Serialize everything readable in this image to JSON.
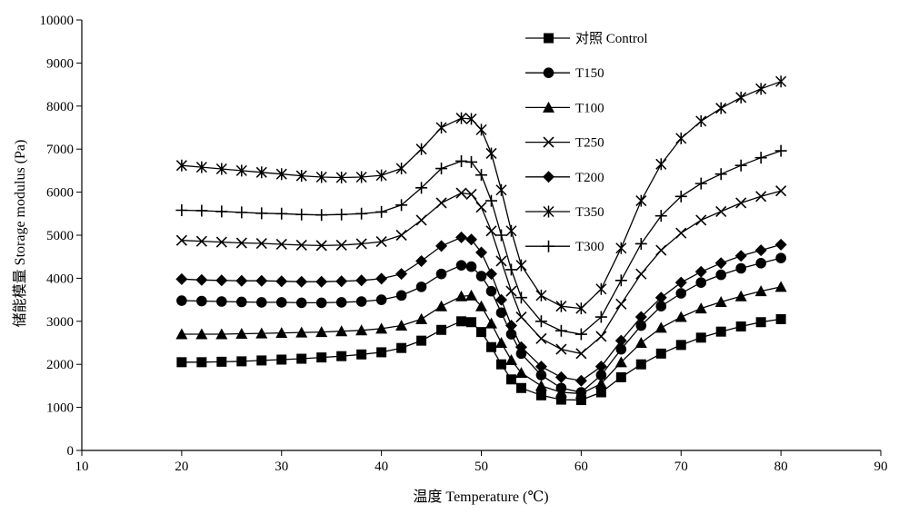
{
  "chart_data": {
    "type": "line",
    "xlabel": "温度 Temperature (℃)",
    "ylabel": "储能模量 Storage modulus (Pa)",
    "xlim": [
      10,
      90
    ],
    "ylim": [
      0,
      10000
    ],
    "xticks": [
      "10",
      "20",
      "30",
      "40",
      "50",
      "60",
      "70",
      "80",
      "90"
    ],
    "yticks": [
      "0",
      "1000",
      "2000",
      "3000",
      "4000",
      "5000",
      "6000",
      "7000",
      "8000",
      "9000",
      "10000"
    ],
    "grid": false,
    "legend_position": "top-right",
    "x": [
      20,
      22,
      24,
      26,
      28,
      30,
      32,
      34,
      36,
      38,
      40,
      42,
      44,
      46,
      48,
      49,
      50,
      51,
      52,
      53,
      54,
      56,
      58,
      60,
      62,
      64,
      66,
      68,
      70,
      72,
      74,
      76,
      78,
      80
    ],
    "series": [
      {
        "name": "对照 Control",
        "marker": "square",
        "values": [
          2050,
          2050,
          2060,
          2070,
          2090,
          2110,
          2130,
          2160,
          2190,
          2230,
          2280,
          2380,
          2550,
          2800,
          3000,
          2980,
          2750,
          2400,
          2000,
          1650,
          1450,
          1280,
          1180,
          1170,
          1350,
          1700,
          2000,
          2250,
          2450,
          2620,
          2760,
          2880,
          2980,
          3050
        ]
      },
      {
        "name": "T150",
        "marker": "circle",
        "values": [
          3480,
          3470,
          3460,
          3450,
          3440,
          3440,
          3430,
          3430,
          3440,
          3460,
          3500,
          3600,
          3800,
          4100,
          4300,
          4270,
          4050,
          3700,
          3200,
          2700,
          2250,
          1750,
          1450,
          1350,
          1750,
          2350,
          2900,
          3350,
          3650,
          3900,
          4080,
          4230,
          4350,
          4470
        ]
      },
      {
        "name": "T100",
        "marker": "triangle",
        "values": [
          2700,
          2700,
          2700,
          2710,
          2720,
          2730,
          2740,
          2750,
          2770,
          2790,
          2830,
          2900,
          3050,
          3350,
          3580,
          3600,
          3350,
          2950,
          2500,
          2100,
          1800,
          1500,
          1350,
          1320,
          1550,
          2050,
          2500,
          2850,
          3100,
          3300,
          3450,
          3580,
          3700,
          3800
        ]
      },
      {
        "name": "T250",
        "marker": "x",
        "values": [
          4880,
          4860,
          4840,
          4820,
          4810,
          4790,
          4770,
          4760,
          4770,
          4800,
          4850,
          5000,
          5350,
          5750,
          5980,
          5950,
          5650,
          5100,
          4400,
          3700,
          3100,
          2600,
          2350,
          2250,
          2650,
          3400,
          4100,
          4650,
          5050,
          5350,
          5550,
          5750,
          5900,
          6030
        ]
      },
      {
        "name": "T200",
        "marker": "diamond",
        "values": [
          3980,
          3960,
          3950,
          3940,
          3940,
          3930,
          3920,
          3920,
          3930,
          3950,
          3990,
          4100,
          4400,
          4750,
          4950,
          4900,
          4600,
          4100,
          3500,
          2900,
          2400,
          1950,
          1700,
          1620,
          1950,
          2550,
          3100,
          3550,
          3900,
          4150,
          4350,
          4520,
          4650,
          4780
        ]
      },
      {
        "name": "T350",
        "marker": "asterisk",
        "values": [
          6620,
          6580,
          6540,
          6500,
          6460,
          6420,
          6380,
          6350,
          6340,
          6350,
          6390,
          6550,
          7000,
          7500,
          7720,
          7700,
          7450,
          6900,
          6050,
          5100,
          4300,
          3600,
          3350,
          3300,
          3750,
          4700,
          5800,
          6650,
          7250,
          7650,
          7950,
          8200,
          8400,
          8570
        ]
      },
      {
        "name": "T300",
        "marker": "plus",
        "values": [
          5580,
          5570,
          5550,
          5530,
          5510,
          5500,
          5480,
          5470,
          5480,
          5500,
          5540,
          5700,
          6100,
          6550,
          6720,
          6700,
          6400,
          5800,
          5000,
          4200,
          3550,
          3000,
          2780,
          2700,
          3100,
          3950,
          4800,
          5450,
          5900,
          6200,
          6420,
          6620,
          6800,
          6960
        ]
      }
    ]
  }
}
